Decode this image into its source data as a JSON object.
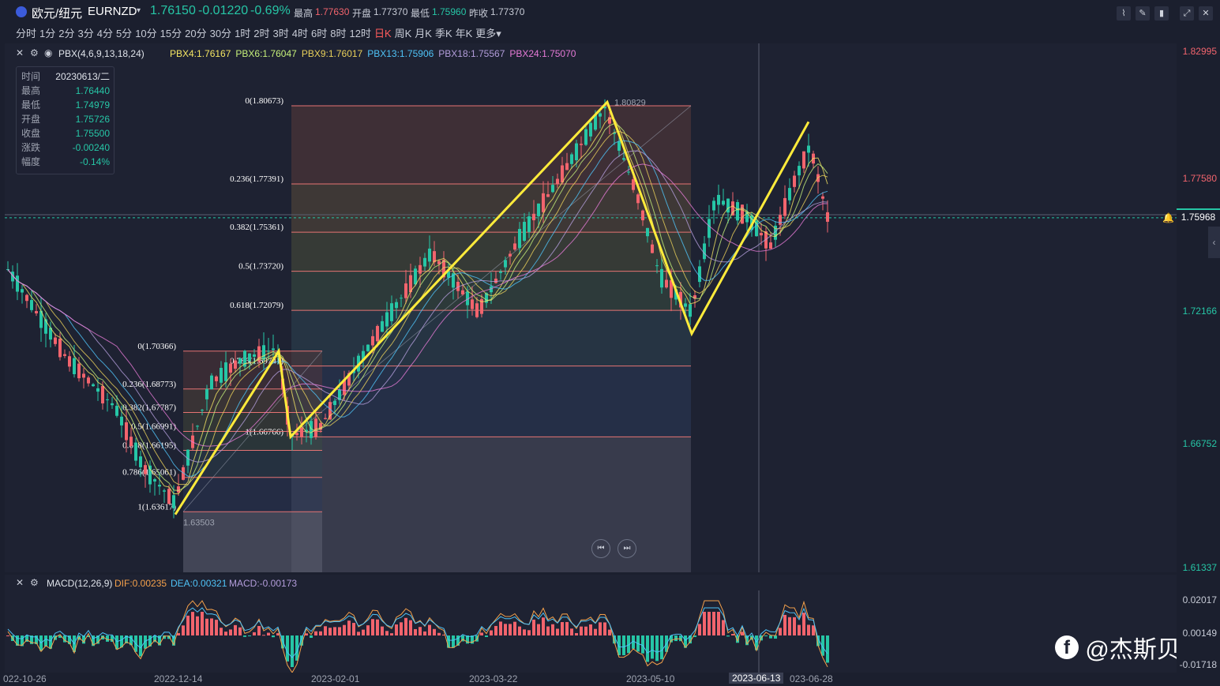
{
  "header": {
    "symbol_name": "欧元/纽元",
    "symbol_code": "EURNZD",
    "price": "1.76150",
    "change": "-0.01220",
    "change_pct": "-0.69%",
    "high_label": "最高",
    "high": "1.77630",
    "open_label": "开盘",
    "open": "1.77370",
    "low_label": "最低",
    "low": "1.75960",
    "prev_close_label": "昨收",
    "prev_close": "1.77370"
  },
  "periods": [
    "分时",
    "1分",
    "2分",
    "3分",
    "4分",
    "5分",
    "10分",
    "15分",
    "20分",
    "30分",
    "1时",
    "2时",
    "3时",
    "4时",
    "6时",
    "8时",
    "12时",
    "日K",
    "周K",
    "月K",
    "季K",
    "年K",
    "更多"
  ],
  "active_period": "日K",
  "indicator": {
    "name": "PBX(4,6,9,13,18,24)",
    "items": [
      {
        "label": "PBX4:1.76167",
        "color": "#f5e663"
      },
      {
        "label": "PBX6:1.76047",
        "color": "#c6f07a"
      },
      {
        "label": "PBX9:1.76017",
        "color": "#e8d05a"
      },
      {
        "label": "PBX13:1.75906",
        "color": "#4fc3f7"
      },
      {
        "label": "PBX18:1.75567",
        "color": "#b39ddb"
      },
      {
        "label": "PBX24:1.75070",
        "color": "#e57ad6"
      }
    ]
  },
  "infobox": {
    "rows": [
      {
        "k": "时间",
        "v": "20230613/二",
        "c": "#dfe3ea"
      },
      {
        "k": "最高",
        "v": "1.76440",
        "c": "#26c6a6"
      },
      {
        "k": "最低",
        "v": "1.74979",
        "c": "#26c6a6"
      },
      {
        "k": "开盘",
        "v": "1.75726",
        "c": "#26c6a6"
      },
      {
        "k": "收盘",
        "v": "1.75500",
        "c": "#26c6a6"
      },
      {
        "k": "涨跌",
        "v": "-0.00240",
        "c": "#26c6a6"
      },
      {
        "k": "幅度",
        "v": "-0.14%",
        "c": "#26c6a6"
      }
    ]
  },
  "fib_right": [
    {
      "label": "0(1.80673)",
      "price": 1.80673
    },
    {
      "label": "0.236(1.77391)",
      "price": 1.77391
    },
    {
      "label": "0.382(1.75361)",
      "price": 1.75361
    },
    {
      "label": "0.5(1.73720)",
      "price": 1.7372
    },
    {
      "label": "0.618(1.72079)",
      "price": 1.72079
    },
    {
      "label": "0.786(1.69741)",
      "price": 1.69741
    },
    {
      "label": "1(1.66766)",
      "price": 1.66766
    }
  ],
  "fib_left": [
    {
      "label": "0(1.70366)",
      "price": 1.70366
    },
    {
      "label": "0.236(1.68773)",
      "price": 1.68773
    },
    {
      "label": "0.382(1.67787)",
      "price": 1.67787
    },
    {
      "label": "0.5(1.66991)",
      "price": 1.66991
    },
    {
      "label": "0.618(1.66195)",
      "price": 1.66195
    },
    {
      "label": "0.786(1.65061)",
      "price": 1.65061
    },
    {
      "label": "1(1.63617)",
      "price": 1.63617
    }
  ],
  "annotations": {
    "peak": "1.80829",
    "trough": "1.63503"
  },
  "yaxis": {
    "labels": [
      {
        "text": "1.82995",
        "color": "#f2646d"
      },
      {
        "text": "1.77580",
        "color": "#f2646d"
      },
      {
        "text": "1.72166",
        "color": "#26c6a6"
      },
      {
        "text": "1.66752",
        "color": "#26c6a6"
      },
      {
        "text": "1.61337",
        "color": "#26c6a6"
      }
    ],
    "current_price": "1.75968"
  },
  "macd": {
    "name": "MACD(12,26,9)",
    "dif": "DIF:0.00235",
    "dea": "DEA:0.00321",
    "macd": "MACD:-0.00173",
    "yl_top": "0.02017",
    "yl_mid": "0.00149",
    "yl_bot": "-0.01718"
  },
  "xaxis": {
    "labels": [
      "022-10-26",
      "2022-12-14",
      "2023-02-01",
      "2023-03-22",
      "2023-05-10",
      "2023-06-13",
      "023-06-28"
    ],
    "highlight": "2023-06-13"
  },
  "watermark": "@杰斯贝尔"
}
